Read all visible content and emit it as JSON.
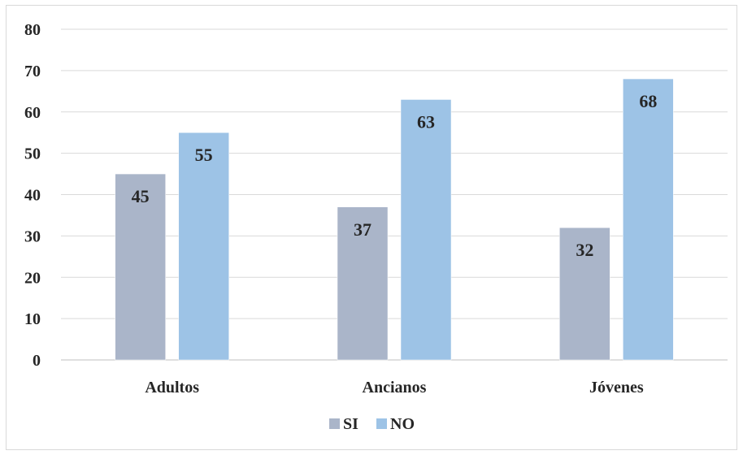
{
  "chart_data": {
    "type": "bar",
    "categories": [
      "Adultos",
      "Ancianos",
      "Jóvenes"
    ],
    "series": [
      {
        "name": "SI",
        "values": [
          45,
          37,
          32
        ],
        "color": "#aab5c9"
      },
      {
        "name": "NO",
        "values": [
          55,
          63,
          68
        ],
        "color": "#9dc3e6"
      }
    ],
    "ylim": [
      0,
      80
    ],
    "yticks": [
      "0",
      "10",
      "20",
      "30",
      "40",
      "50",
      "60",
      "70",
      "80"
    ],
    "grid": true,
    "legend_position": "bottom",
    "title": "",
    "xlabel": "",
    "ylabel": ""
  }
}
